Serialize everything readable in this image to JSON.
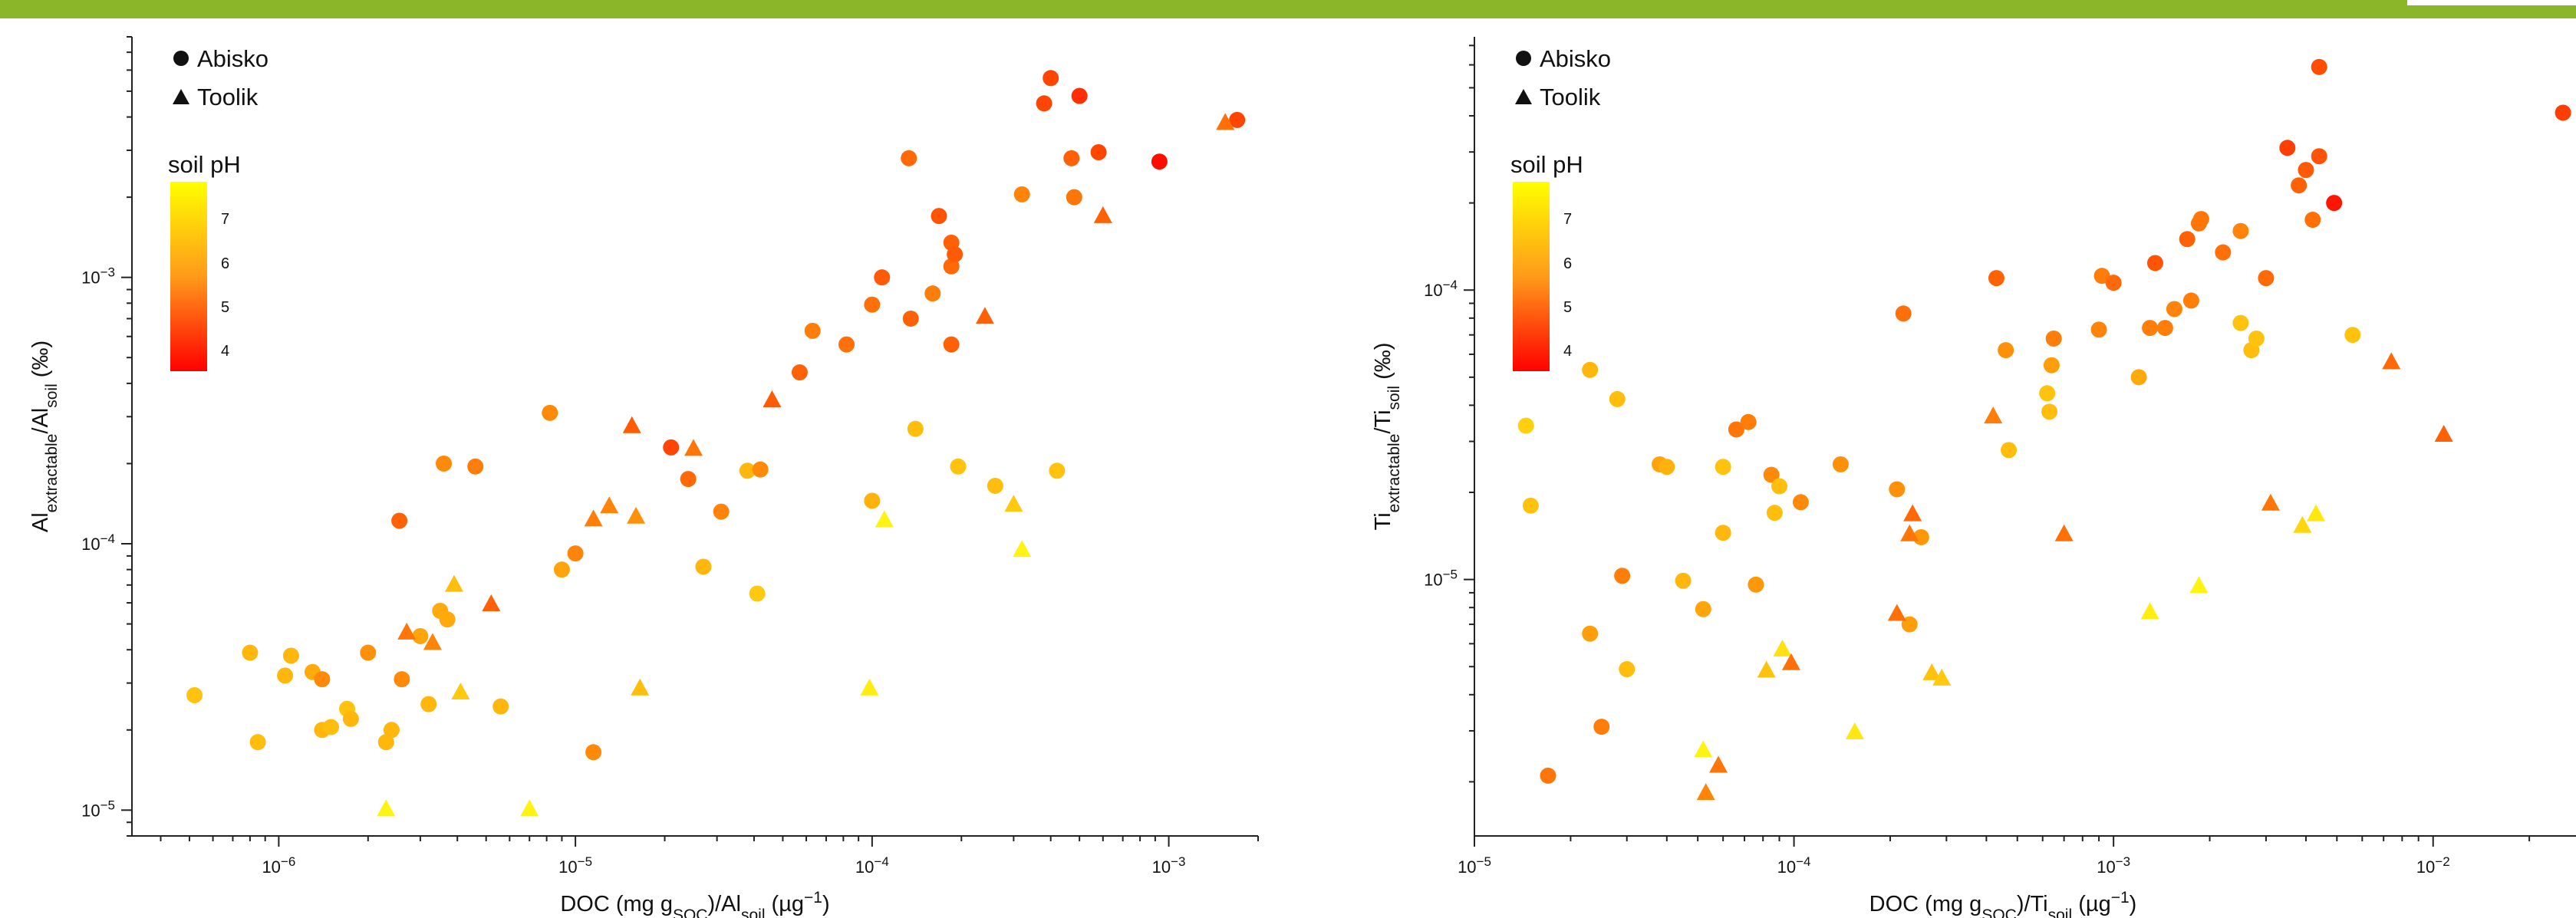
{
  "legend": {
    "site1": "Abisko",
    "site2": "Toolik",
    "colorbar_title": "soil pH",
    "colorbar_ticks": [
      "7",
      "6",
      "5",
      "4"
    ]
  },
  "colors": {
    "header_bar": "#8cb62a",
    "ph_low": "#ff0000",
    "ph_high": "#ffff00"
  },
  "chart_data": [
    {
      "type": "scatter",
      "title": "",
      "xlabel_main": "DOC (mg g",
      "xlabel_sub1": "SOC",
      "xlabel_mid": ")/Al",
      "xlabel_sub2": "soil",
      "xlabel_end": " (µg",
      "xlabel_sup": "−1",
      "xlabel_close": ")",
      "ylabel_main": "Al",
      "ylabel_sub1": "extractable",
      "ylabel_mid": "/Al",
      "ylabel_sub2": "soil",
      "ylabel_end": " (‰)",
      "x_scale": "log",
      "y_scale": "log",
      "xlim": [
        3.2e-07,
        0.002
      ],
      "ylim": [
        8e-06,
        0.008
      ],
      "x_ticks": [
        {
          "v": 1e-06,
          "base": "10",
          "exp": "−6"
        },
        {
          "v": 1e-05,
          "base": "10",
          "exp": "−5"
        },
        {
          "v": 0.0001,
          "base": "10",
          "exp": "−4"
        },
        {
          "v": 0.001,
          "base": "10",
          "exp": "−3"
        }
      ],
      "y_ticks": [
        {
          "v": 1e-05,
          "base": "10",
          "exp": "−5"
        },
        {
          "v": 0.0001,
          "base": "10",
          "exp": "−4"
        },
        {
          "v": 0.001,
          "base": "10",
          "exp": "−3"
        }
      ],
      "series": [
        {
          "name": "Abisko",
          "marker": "circle",
          "points": [
            [
              5.2e-07,
              2.7e-05,
              6.5
            ],
            [
              8e-07,
              3.9e-05,
              6.3
            ],
            [
              8.5e-07,
              1.8e-05,
              6.4
            ],
            [
              1.05e-06,
              3.2e-05,
              6.3
            ],
            [
              1.1e-06,
              3.8e-05,
              6.3
            ],
            [
              1.3e-06,
              3.3e-05,
              6.1
            ],
            [
              1.4e-06,
              3.1e-05,
              5.6
            ],
            [
              1.4e-06,
              2e-05,
              6.3
            ],
            [
              1.5e-06,
              2.05e-05,
              6.4
            ],
            [
              1.7e-06,
              2.4e-05,
              6.5
            ],
            [
              1.75e-06,
              2.2e-05,
              6.3
            ],
            [
              2e-06,
              3.9e-05,
              5.7
            ],
            [
              2.3e-06,
              1.8e-05,
              6.3
            ],
            [
              2.4e-06,
              2e-05,
              6.3
            ],
            [
              2.6e-06,
              3.1e-05,
              5.6
            ],
            [
              2.55e-06,
              0.000122,
              5.0
            ],
            [
              3e-06,
              4.5e-05,
              6.0
            ],
            [
              3.2e-06,
              2.5e-05,
              6.3
            ],
            [
              3.5e-06,
              5.6e-05,
              6.1
            ],
            [
              3.7e-06,
              5.2e-05,
              6.1
            ],
            [
              3.6e-06,
              0.0002,
              5.6
            ],
            [
              4.6e-06,
              0.000195,
              5.4
            ],
            [
              5.6e-06,
              2.45e-05,
              6.3
            ],
            [
              8.2e-06,
              0.00031,
              5.6
            ],
            [
              9e-06,
              8e-05,
              6.0
            ],
            [
              1e-05,
              9.2e-05,
              5.5
            ],
            [
              1.15e-05,
              1.65e-05,
              5.6
            ],
            [
              2.1e-05,
              0.00023,
              4.6
            ],
            [
              2.4e-05,
              0.000175,
              5.1
            ],
            [
              2.7e-05,
              8.2e-05,
              6.3
            ],
            [
              3.1e-05,
              0.000132,
              5.5
            ],
            [
              3.8e-05,
              0.000188,
              6.3
            ],
            [
              4.2e-05,
              0.00019,
              5.6
            ],
            [
              4.1e-05,
              6.5e-05,
              6.6
            ],
            [
              5.7e-05,
              0.00044,
              5.0
            ],
            [
              6.3e-05,
              0.00063,
              5.4
            ],
            [
              8.2e-05,
              0.00056,
              5.2
            ],
            [
              0.0001,
              0.00079,
              5.2
            ],
            [
              0.000108,
              0.001,
              4.9
            ],
            [
              0.0001,
              0.000145,
              6.2
            ],
            [
              0.000133,
              0.0028,
              5.1
            ],
            [
              0.000135,
              0.0007,
              5.0
            ],
            [
              0.00014,
              0.00027,
              6.4
            ],
            [
              0.00016,
              0.00087,
              5.4
            ],
            [
              0.000168,
              0.0017,
              4.8
            ],
            [
              0.000185,
              0.00135,
              5.0
            ],
            [
              0.000185,
              0.0011,
              5.1
            ],
            [
              0.00019,
              0.00122,
              4.9
            ],
            [
              0.000185,
              0.00056,
              5.0
            ],
            [
              0.000195,
              0.000195,
              6.5
            ],
            [
              0.00026,
              0.000165,
              6.4
            ],
            [
              0.00032,
              0.00205,
              5.5
            ],
            [
              0.00038,
              0.0045,
              4.6
            ],
            [
              0.0004,
              0.0056,
              4.6
            ],
            [
              0.00042,
              0.000188,
              6.5
            ],
            [
              0.00047,
              0.0028,
              5.0
            ],
            [
              0.00048,
              0.002,
              5.3
            ],
            [
              0.0005,
              0.0048,
              4.3
            ],
            [
              0.00058,
              0.00295,
              4.6
            ],
            [
              0.00093,
              0.00272,
              3.9
            ],
            [
              0.0017,
              0.0039,
              4.6
            ]
          ]
        },
        {
          "name": "Toolik",
          "marker": "triangle",
          "points": [
            [
              2.3e-06,
              1.02e-05,
              7.3
            ],
            [
              2.7e-06,
              4.7e-05,
              5.3
            ],
            [
              3.3e-06,
              4.3e-05,
              5.5
            ],
            [
              3.9e-06,
              7.1e-05,
              6.4
            ],
            [
              4.1e-06,
              2.8e-05,
              6.6
            ],
            [
              5.2e-06,
              6e-05,
              5.0
            ],
            [
              7e-06,
              1.02e-05,
              7.3
            ],
            [
              1.15e-05,
              0.000125,
              5.4
            ],
            [
              1.3e-05,
              0.00014,
              5.5
            ],
            [
              1.55e-05,
              0.00028,
              4.9
            ],
            [
              1.6e-05,
              0.000128,
              5.7
            ],
            [
              1.65e-05,
              2.9e-05,
              6.4
            ],
            [
              2.5e-05,
              0.00023,
              5.3
            ],
            [
              9.8e-05,
              2.9e-05,
              7.2
            ],
            [
              0.00011,
              0.000124,
              7.3
            ],
            [
              4.6e-05,
              0.00035,
              4.9
            ],
            [
              0.00024,
              0.00072,
              5.0
            ],
            [
              0.0003,
              0.000142,
              6.6
            ],
            [
              0.00032,
              9.6e-05,
              7.3
            ],
            [
              0.0006,
              0.00172,
              5.0
            ],
            [
              0.00155,
              0.00385,
              5.2
            ]
          ]
        }
      ]
    },
    {
      "type": "scatter",
      "title": "",
      "xlabel_main": "DOC (mg g",
      "xlabel_sub1": "SOC",
      "xlabel_mid": ")/Ti",
      "xlabel_sub2": "soil",
      "xlabel_end": " (µg",
      "xlabel_sup": "−1",
      "xlabel_close": ")",
      "ylabel_main": "Ti",
      "ylabel_sub1": "extractable",
      "ylabel_mid": "/Ti",
      "ylabel_sub2": "soil",
      "ylabel_end": " (‰)",
      "x_scale": "log",
      "y_scale": "log",
      "xlim": [
        1e-05,
        0.028
      ],
      "ylim": [
        1.3e-06,
        0.00075
      ],
      "x_ticks": [
        {
          "v": 1e-05,
          "base": "10",
          "exp": "−5"
        },
        {
          "v": 0.0001,
          "base": "10",
          "exp": "−4"
        },
        {
          "v": 0.001,
          "base": "10",
          "exp": "−3"
        },
        {
          "v": 0.01,
          "base": "10",
          "exp": "−2"
        }
      ],
      "y_ticks": [
        {
          "v": 1e-05,
          "base": "10",
          "exp": "−5"
        },
        {
          "v": 0.0001,
          "base": "10",
          "exp": "−4"
        }
      ],
      "series": [
        {
          "name": "Abisko",
          "marker": "circle",
          "points": [
            [
              1.45e-05,
              3.4e-05,
              6.7
            ],
            [
              1.5e-05,
              1.8e-05,
              6.5
            ],
            [
              1.7e-05,
              2.1e-06,
              5.3
            ],
            [
              2.3e-05,
              5.3e-05,
              6.3
            ],
            [
              2.3e-05,
              6.5e-06,
              5.9
            ],
            [
              2.5e-05,
              3.1e-06,
              5.4
            ],
            [
              2.8e-05,
              4.2e-05,
              6.4
            ],
            [
              2.9e-05,
              1.03e-05,
              5.4
            ],
            [
              3e-05,
              4.9e-06,
              6.4
            ],
            [
              3.8e-05,
              2.5e-05,
              6.0
            ],
            [
              4e-05,
              2.45e-05,
              6.2
            ],
            [
              4.5e-05,
              9.9e-06,
              6.3
            ],
            [
              5.2e-05,
              7.9e-06,
              6.0
            ],
            [
              6e-05,
              2.45e-05,
              6.5
            ],
            [
              6e-05,
              1.45e-05,
              6.3
            ],
            [
              6.6e-05,
              3.3e-05,
              5.3
            ],
            [
              7.2e-05,
              3.5e-05,
              5.4
            ],
            [
              7.6e-05,
              9.6e-06,
              5.8
            ],
            [
              8.5e-05,
              2.3e-05,
              5.6
            ],
            [
              8.7e-05,
              1.7e-05,
              6.4
            ],
            [
              9e-05,
              2.1e-05,
              6.4
            ],
            [
              0.000105,
              1.85e-05,
              5.6
            ],
            [
              0.00014,
              2.5e-05,
              5.7
            ],
            [
              0.00021,
              2.05e-05,
              5.7
            ],
            [
              0.00022,
              8.3e-05,
              5.2
            ],
            [
              0.00023,
              7e-06,
              5.9
            ],
            [
              0.00025,
              1.4e-05,
              5.8
            ],
            [
              0.00043,
              0.00011,
              5.0
            ],
            [
              0.00046,
              6.2e-05,
              5.7
            ],
            [
              0.00047,
              2.8e-05,
              6.4
            ],
            [
              0.00062,
              4.4e-05,
              6.5
            ],
            [
              0.00063,
              3.8e-05,
              6.4
            ],
            [
              0.00064,
              5.5e-05,
              5.9
            ],
            [
              0.00065,
              6.8e-05,
              5.4
            ],
            [
              0.0009,
              7.3e-05,
              5.5
            ],
            [
              0.00092,
              0.000112,
              5.4
            ],
            [
              0.001,
              0.000106,
              5.1
            ],
            [
              0.0012,
              5e-05,
              6.1
            ],
            [
              0.0013,
              7.4e-05,
              5.4
            ],
            [
              0.00135,
              0.000124,
              4.8
            ],
            [
              0.00145,
              7.4e-05,
              5.4
            ],
            [
              0.00155,
              8.6e-05,
              5.5
            ],
            [
              0.0017,
              0.00015,
              5.0
            ],
            [
              0.00175,
              9.2e-05,
              5.4
            ],
            [
              0.00185,
              0.00017,
              5.3
            ],
            [
              0.00188,
              0.000176,
              5.3
            ],
            [
              0.0022,
              0.000135,
              5.2
            ],
            [
              0.0025,
              0.00016,
              5.5
            ],
            [
              0.0027,
              6.2e-05,
              6.4
            ],
            [
              0.0025,
              7.7e-05,
              6.5
            ],
            [
              0.0028,
              6.8e-05,
              6.5
            ],
            [
              0.003,
              0.00011,
              5.1
            ],
            [
              0.0035,
              0.00031,
              4.5
            ],
            [
              0.0038,
              0.00023,
              5.0
            ],
            [
              0.004,
              0.00026,
              4.9
            ],
            [
              0.0042,
              0.000175,
              5.2
            ],
            [
              0.0044,
              0.00029,
              4.8
            ],
            [
              0.0044,
              0.00059,
              4.7
            ],
            [
              0.0049,
              0.0002,
              4.0
            ],
            [
              0.0056,
              7e-05,
              6.5
            ],
            [
              0.0255,
              0.00041,
              4.5
            ]
          ]
        },
        {
          "name": "Toolik",
          "marker": "triangle",
          "points": [
            [
              5.2e-05,
              2.6e-06,
              7.3
            ],
            [
              5.3e-05,
              1.85e-06,
              5.5
            ],
            [
              5.8e-05,
              2.3e-06,
              5.3
            ],
            [
              8.2e-05,
              4.9e-06,
              6.5
            ],
            [
              9.2e-05,
              5.8e-06,
              7.0
            ],
            [
              9.8e-05,
              5.2e-06,
              5.2
            ],
            [
              0.000155,
              3e-06,
              7.1
            ],
            [
              0.00021,
              7.7e-06,
              5.2
            ],
            [
              0.00023,
              1.45e-05,
              5.3
            ],
            [
              0.000235,
              1.7e-05,
              5.1
            ],
            [
              0.00027,
              4.8e-06,
              6.5
            ],
            [
              0.00029,
              4.6e-06,
              6.6
            ],
            [
              0.00042,
              3.7e-05,
              5.4
            ],
            [
              0.0007,
              1.45e-05,
              5.2
            ],
            [
              0.0013,
              7.8e-06,
              7.2
            ],
            [
              0.00185,
              9.6e-06,
              7.3
            ],
            [
              0.0031,
              1.85e-05,
              5.3
            ],
            [
              0.0039,
              1.55e-05,
              6.8
            ],
            [
              0.0043,
              1.7e-05,
              7.1
            ],
            [
              0.0074,
              5.7e-05,
              5.1
            ],
            [
              0.0108,
              3.2e-05,
              5.0
            ]
          ]
        }
      ]
    }
  ]
}
